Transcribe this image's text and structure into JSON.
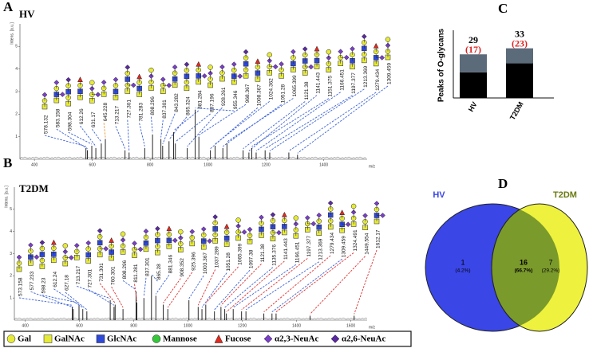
{
  "chart_data": [
    {
      "type": "stem",
      "panel": "A",
      "group": "HV",
      "ylabel": "Intens. [a.u.]",
      "xlabel": "m/z",
      "color": "#111111",
      "x": [
        578.132,
        583.158,
        598.304,
        612.26,
        631.17,
        645.228,
        713.217,
        727.301,
        781.283,
        808.296,
        837.301,
        843.282,
        865.324,
        881.284,
        887.196,
        928.261,
        955.346,
        968.367,
        1008.367,
        1024.362,
        1051.28,
        1065.399,
        1121.38,
        1141.443,
        1151.375,
        1166.451,
        1197.377,
        1213.369,
        1279.434,
        1309.459
      ],
      "values": [
        0.5,
        0.4,
        0.6,
        0.5,
        0.7,
        0.9,
        0.4,
        0.3,
        0.5,
        1.1,
        0.9,
        0.6,
        0.8,
        1.2,
        0.7,
        0.5,
        2.2,
        1.0,
        0.4,
        0.6,
        0.5,
        0.7,
        0.4,
        0.3,
        0.5,
        0.3,
        0.4,
        0.3,
        0.3,
        0.2
      ],
      "link_colors": [
        "#3d63d8",
        "#3d63d8",
        "#3d63d8",
        "#3d63d8",
        "#3d63d8",
        "#e8962e",
        "#3d63d8",
        "#3d63d8",
        "#3d63d8",
        "#3d63d8",
        "#3d63d8",
        "#3d63d8",
        "#3d63d8",
        "#3d63d8",
        "#3d63d8",
        "#3d63d8",
        "#3d63d8",
        "#3d63d8",
        "#3d63d8",
        "#3d63d8",
        "#3d63d8",
        "#3d63d8",
        "#3d63d8",
        "#3d63d8",
        "#3d63d8",
        "#3d63d8",
        "#3d63d8",
        "#3d63d8",
        "#3d63d8",
        "#3d63d8"
      ],
      "xlim": [
        350,
        1550
      ],
      "xticks": [
        400,
        600,
        800,
        1000,
        1200,
        1400
      ],
      "ylim": [
        0,
        6
      ],
      "yticks": [
        1,
        2,
        3,
        4,
        5
      ]
    },
    {
      "type": "stem",
      "panel": "B",
      "group": "T2DM",
      "ylabel": "Intens. [a.u.]",
      "xlabel": "m/z",
      "color": "#111111",
      "x": [
        573.158,
        577.233,
        598.23,
        612.24,
        627.18,
        713.217,
        727.301,
        731.301,
        760.301,
        808.296,
        811.281,
        837.301,
        865.28,
        881.346,
        908.352,
        925.396,
        1003.367,
        1037.289,
        1051.28,
        1065.399,
        1097.38,
        1121.38,
        1135.376,
        1141.443,
        1166.451,
        1197.377,
        1213.369,
        1279.434,
        1309.459,
        1324.491,
        1449.554,
        1612.17
      ],
      "values": [
        0.6,
        0.5,
        0.7,
        0.5,
        0.4,
        0.9,
        0.6,
        0.7,
        0.5,
        1.3,
        0.8,
        1.0,
        2.0,
        1.1,
        0.7,
        0.5,
        0.9,
        0.6,
        0.5,
        0.7,
        0.4,
        0.6,
        0.5,
        0.3,
        0.5,
        0.4,
        0.4,
        0.3,
        0.3,
        0.3,
        0.2,
        0.2
      ],
      "link_colors": [
        "#3d63d8",
        "#3d63d8",
        "#3d63d8",
        "#3d63d8",
        "#3d63d8",
        "#3d63d8",
        "#3d63d8",
        "#e03131",
        "#e03131",
        "#3d63d8",
        "#e03131",
        "#3d63d8",
        "#3d63d8",
        "#3d63d8",
        "#e03131",
        "#e03131",
        "#3d63d8",
        "#e03131",
        "#3d63d8",
        "#e03131",
        "#3d63d8",
        "#e03131",
        "#3d63d8",
        "#e03131",
        "#3d63d8",
        "#e03131",
        "#3d63d8",
        "#e03131",
        "#3d63d8",
        "#e03131",
        "#e03131",
        "#e03131"
      ],
      "xlim": [
        360,
        1660
      ],
      "xticks": [
        400,
        600,
        800,
        1000,
        1200,
        1400,
        1600
      ],
      "ylim": [
        0,
        6
      ],
      "yticks": [
        1,
        2,
        3,
        4,
        5
      ]
    },
    {
      "type": "stacked-bar",
      "panel": "C",
      "ylabel": "Peaks of O-glycans",
      "categories": [
        "HV",
        "T2DM"
      ],
      "series": [
        {
          "color": "#000000",
          "values": [
            17,
            23
          ],
          "value_labels": [
            "(17)",
            "(23)"
          ],
          "label_color": "#e02020"
        },
        {
          "color": "#5c6b7a",
          "values": [
            12,
            10
          ]
        }
      ],
      "totals": [
        29,
        33
      ],
      "ylim": [
        0,
        45
      ]
    }
  ],
  "venn": {
    "panel": "D",
    "sets": [
      {
        "label": "HV",
        "color": "#3a46e6"
      },
      {
        "label": "T2DM",
        "color": "#eef23e",
        "label_color": "#6b7a10"
      }
    ],
    "overlap_color": "#7b9a2c",
    "regions": [
      {
        "count": "1",
        "percent": "(4.2%)"
      },
      {
        "count": "16",
        "percent": "(66.7%)"
      },
      {
        "count": "7",
        "percent": "(29.2%)"
      }
    ]
  },
  "legend": [
    {
      "label": "Gal",
      "shape": "circle",
      "color": "#e6ea3a"
    },
    {
      "label": "GalNAc",
      "shape": "square",
      "color": "#e6ea3a"
    },
    {
      "label": "GlcNAc",
      "shape": "square",
      "color": "#2f49d8"
    },
    {
      "label": "Mannose",
      "shape": "circle",
      "color": "#35c83a"
    },
    {
      "label": "Fucose",
      "shape": "triangle",
      "color": "#e22a1e"
    },
    {
      "label": "α2,3-NeuAc",
      "shape": "diamond",
      "color": "#7a3fc8"
    },
    {
      "label": "α2,6-NeuAc",
      "shape": "diamond",
      "color": "#5a2aa0"
    }
  ]
}
